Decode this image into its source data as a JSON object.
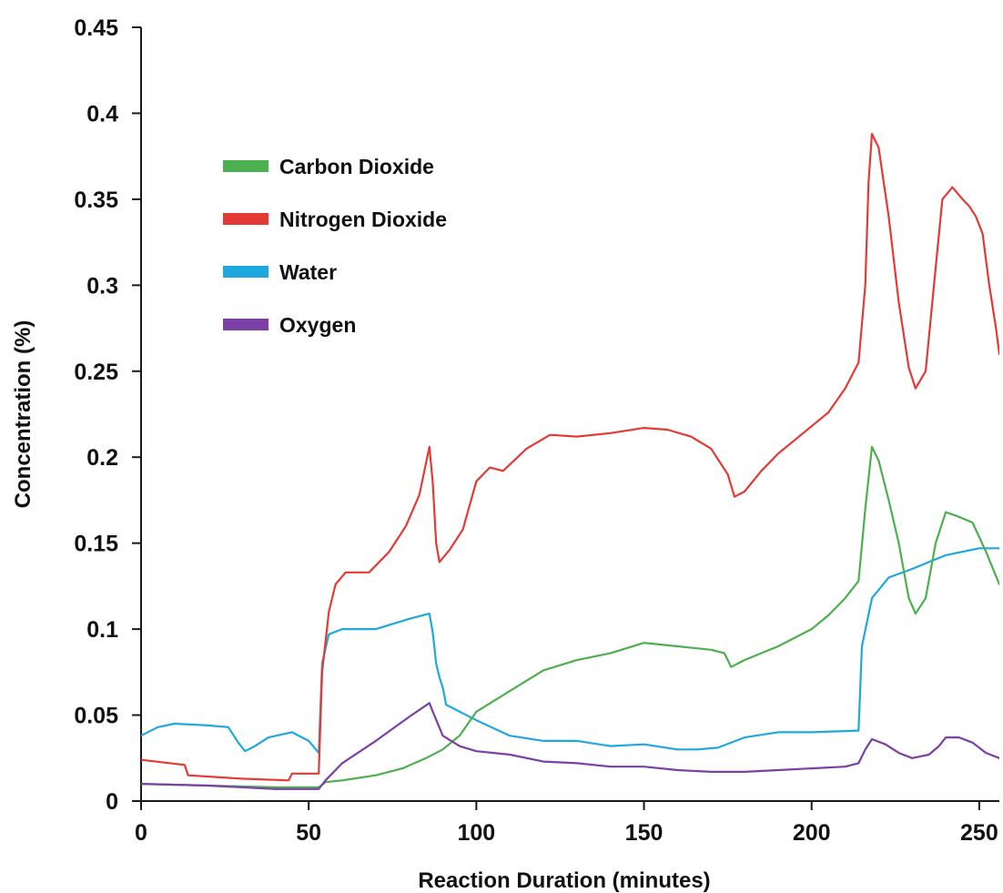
{
  "chart_data": {
    "type": "line",
    "title": "",
    "xlabel": "Reaction Duration (minutes)",
    "ylabel": "Concentration (%)",
    "xlim": [
      0,
      256
    ],
    "ylim": [
      0,
      0.45
    ],
    "x_ticks": [
      0,
      50,
      100,
      150,
      200,
      250
    ],
    "x_tick_labels": [
      "0",
      "50",
      "100",
      "150",
      "200",
      "250"
    ],
    "y_ticks": [
      0,
      0.05,
      0.1,
      0.15,
      0.2,
      0.25,
      0.3,
      0.35,
      0.4,
      0.45
    ],
    "y_tick_labels": [
      "0",
      "0.05",
      "0.1",
      "0.15",
      "0.2",
      "0.25",
      "0.3",
      "0.35",
      "0.4",
      "0.45"
    ],
    "grid": false,
    "legend_position": "top-left",
    "series": [
      {
        "name": "Carbon Dioxide",
        "color": "#4caf50",
        "points": [
          [
            0,
            0.01
          ],
          [
            20,
            0.009
          ],
          [
            40,
            0.008
          ],
          [
            53,
            0.008
          ],
          [
            55,
            0.011
          ],
          [
            60,
            0.012
          ],
          [
            70,
            0.015
          ],
          [
            78,
            0.019
          ],
          [
            85,
            0.025
          ],
          [
            90,
            0.03
          ],
          [
            95,
            0.038
          ],
          [
            100,
            0.052
          ],
          [
            105,
            0.058
          ],
          [
            110,
            0.064
          ],
          [
            120,
            0.076
          ],
          [
            130,
            0.082
          ],
          [
            140,
            0.086
          ],
          [
            150,
            0.092
          ],
          [
            155,
            0.091
          ],
          [
            160,
            0.09
          ],
          [
            170,
            0.088
          ],
          [
            174,
            0.086
          ],
          [
            176,
            0.078
          ],
          [
            180,
            0.082
          ],
          [
            190,
            0.09
          ],
          [
            200,
            0.1
          ],
          [
            205,
            0.108
          ],
          [
            210,
            0.118
          ],
          [
            214,
            0.128
          ],
          [
            216,
            0.17
          ],
          [
            218,
            0.206
          ],
          [
            220,
            0.198
          ],
          [
            223,
            0.175
          ],
          [
            226,
            0.15
          ],
          [
            229,
            0.118
          ],
          [
            231,
            0.109
          ],
          [
            234,
            0.118
          ],
          [
            237,
            0.15
          ],
          [
            240,
            0.168
          ],
          [
            243,
            0.166
          ],
          [
            248,
            0.162
          ],
          [
            252,
            0.145
          ],
          [
            256,
            0.126
          ]
        ]
      },
      {
        "name": "Nitrogen Dioxide",
        "color": "#e53935",
        "points": [
          [
            0,
            0.024
          ],
          [
            13,
            0.021
          ],
          [
            14,
            0.015
          ],
          [
            30,
            0.013
          ],
          [
            44,
            0.012
          ],
          [
            45,
            0.016
          ],
          [
            53,
            0.016
          ],
          [
            54,
            0.075
          ],
          [
            56,
            0.11
          ],
          [
            58,
            0.126
          ],
          [
            61,
            0.133
          ],
          [
            68,
            0.133
          ],
          [
            74,
            0.145
          ],
          [
            79,
            0.16
          ],
          [
            83,
            0.178
          ],
          [
            86,
            0.206
          ],
          [
            87,
            0.185
          ],
          [
            88,
            0.15
          ],
          [
            89,
            0.139
          ],
          [
            92,
            0.146
          ],
          [
            96,
            0.158
          ],
          [
            100,
            0.186
          ],
          [
            104,
            0.194
          ],
          [
            108,
            0.192
          ],
          [
            115,
            0.205
          ],
          [
            122,
            0.213
          ],
          [
            130,
            0.212
          ],
          [
            140,
            0.214
          ],
          [
            150,
            0.217
          ],
          [
            157,
            0.216
          ],
          [
            164,
            0.212
          ],
          [
            170,
            0.205
          ],
          [
            175,
            0.19
          ],
          [
            177,
            0.177
          ],
          [
            180,
            0.18
          ],
          [
            185,
            0.192
          ],
          [
            190,
            0.202
          ],
          [
            195,
            0.21
          ],
          [
            200,
            0.218
          ],
          [
            205,
            0.226
          ],
          [
            210,
            0.24
          ],
          [
            214,
            0.255
          ],
          [
            216,
            0.3
          ],
          [
            217,
            0.36
          ],
          [
            218,
            0.388
          ],
          [
            220,
            0.38
          ],
          [
            223,
            0.34
          ],
          [
            226,
            0.29
          ],
          [
            229,
            0.252
          ],
          [
            231,
            0.24
          ],
          [
            234,
            0.25
          ],
          [
            237,
            0.31
          ],
          [
            239,
            0.35
          ],
          [
            242,
            0.357
          ],
          [
            245,
            0.35
          ],
          [
            247,
            0.346
          ],
          [
            249,
            0.34
          ],
          [
            251,
            0.33
          ],
          [
            253,
            0.3
          ],
          [
            255,
            0.275
          ],
          [
            256,
            0.26
          ]
        ]
      },
      {
        "name": "Water",
        "color": "#1fa8e0",
        "points": [
          [
            0,
            0.038
          ],
          [
            5,
            0.043
          ],
          [
            10,
            0.045
          ],
          [
            20,
            0.044
          ],
          [
            26,
            0.043
          ],
          [
            29,
            0.034
          ],
          [
            31,
            0.029
          ],
          [
            34,
            0.032
          ],
          [
            38,
            0.037
          ],
          [
            45,
            0.04
          ],
          [
            50,
            0.035
          ],
          [
            53,
            0.028
          ],
          [
            54,
            0.08
          ],
          [
            56,
            0.097
          ],
          [
            60,
            0.1
          ],
          [
            70,
            0.1
          ],
          [
            80,
            0.106
          ],
          [
            86,
            0.109
          ],
          [
            87,
            0.098
          ],
          [
            88,
            0.08
          ],
          [
            89,
            0.072
          ],
          [
            90,
            0.066
          ],
          [
            91,
            0.056
          ],
          [
            93,
            0.054
          ],
          [
            100,
            0.047
          ],
          [
            110,
            0.038
          ],
          [
            120,
            0.035
          ],
          [
            130,
            0.035
          ],
          [
            140,
            0.032
          ],
          [
            150,
            0.033
          ],
          [
            160,
            0.03
          ],
          [
            166,
            0.03
          ],
          [
            172,
            0.031
          ],
          [
            180,
            0.037
          ],
          [
            190,
            0.04
          ],
          [
            200,
            0.04
          ],
          [
            214,
            0.041
          ],
          [
            215,
            0.09
          ],
          [
            218,
            0.118
          ],
          [
            223,
            0.13
          ],
          [
            230,
            0.135
          ],
          [
            240,
            0.143
          ],
          [
            250,
            0.147
          ],
          [
            256,
            0.147
          ]
        ]
      },
      {
        "name": "Oxygen",
        "color": "#7b3fa6",
        "points": [
          [
            0,
            0.01
          ],
          [
            20,
            0.009
          ],
          [
            40,
            0.007
          ],
          [
            53,
            0.007
          ],
          [
            55,
            0.012
          ],
          [
            60,
            0.022
          ],
          [
            70,
            0.035
          ],
          [
            80,
            0.049
          ],
          [
            86,
            0.057
          ],
          [
            87,
            0.052
          ],
          [
            90,
            0.038
          ],
          [
            95,
            0.032
          ],
          [
            100,
            0.029
          ],
          [
            110,
            0.027
          ],
          [
            120,
            0.023
          ],
          [
            130,
            0.022
          ],
          [
            140,
            0.02
          ],
          [
            150,
            0.02
          ],
          [
            160,
            0.018
          ],
          [
            170,
            0.017
          ],
          [
            180,
            0.017
          ],
          [
            190,
            0.018
          ],
          [
            200,
            0.019
          ],
          [
            210,
            0.02
          ],
          [
            214,
            0.022
          ],
          [
            216,
            0.03
          ],
          [
            218,
            0.036
          ],
          [
            222,
            0.033
          ],
          [
            226,
            0.028
          ],
          [
            230,
            0.025
          ],
          [
            235,
            0.027
          ],
          [
            238,
            0.032
          ],
          [
            240,
            0.037
          ],
          [
            244,
            0.037
          ],
          [
            248,
            0.034
          ],
          [
            252,
            0.028
          ],
          [
            256,
            0.025
          ]
        ]
      }
    ]
  }
}
